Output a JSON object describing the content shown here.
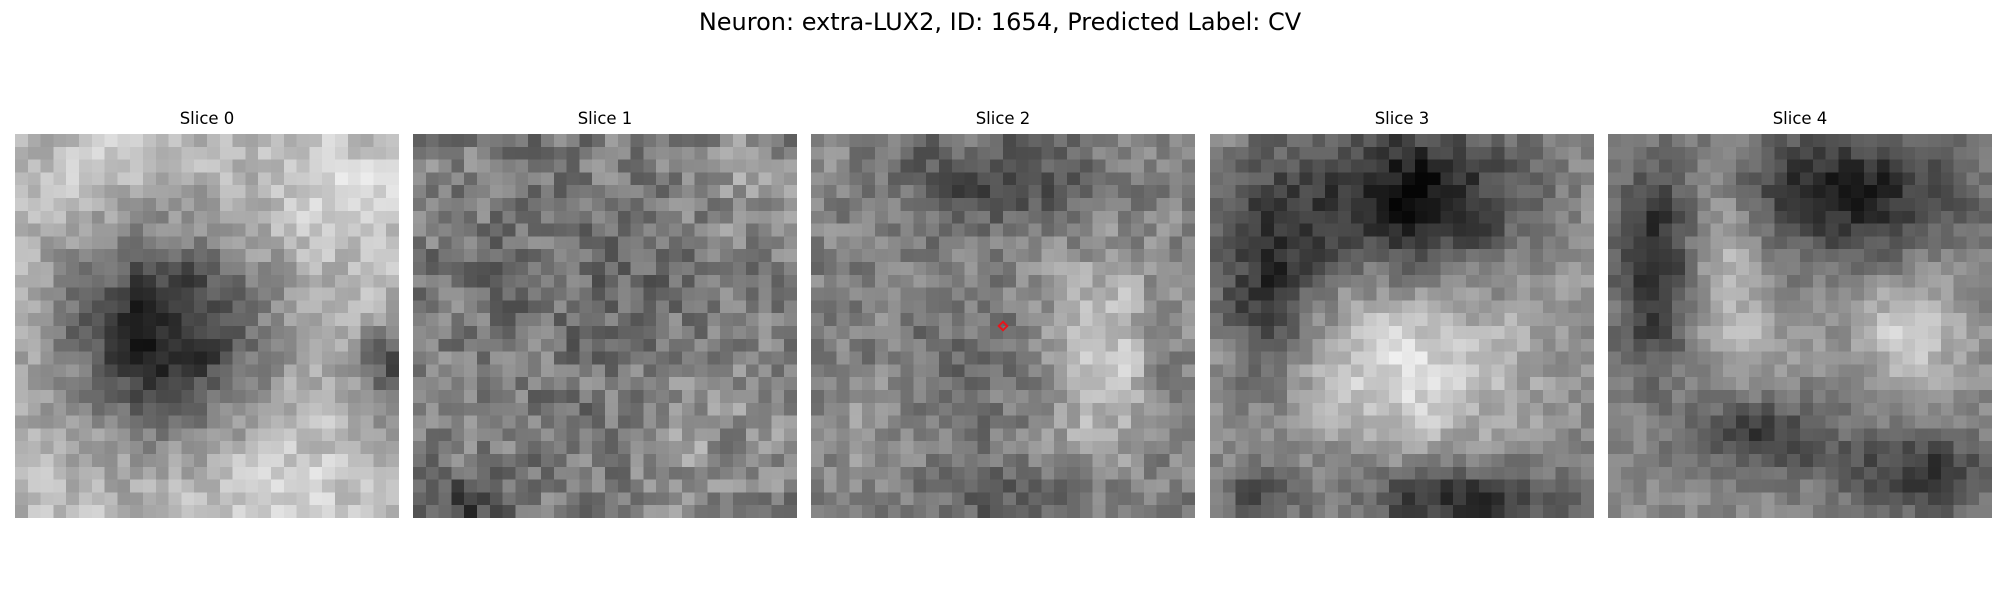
{
  "figure": {
    "title": "Neuron: extra-LUX2, ID: 1654, Predicted Label: CV"
  },
  "colormap": "gray",
  "marker_color": "#e8141b",
  "grid_size": 30,
  "slices": [
    {
      "label": "Slice 0",
      "seed": 11
    },
    {
      "label": "Slice 1",
      "seed": 23
    },
    {
      "label": "Slice 2",
      "seed": 37,
      "marker": true
    },
    {
      "label": "Slice 3",
      "seed": 41
    },
    {
      "label": "Slice 4",
      "seed": 59
    }
  ]
}
